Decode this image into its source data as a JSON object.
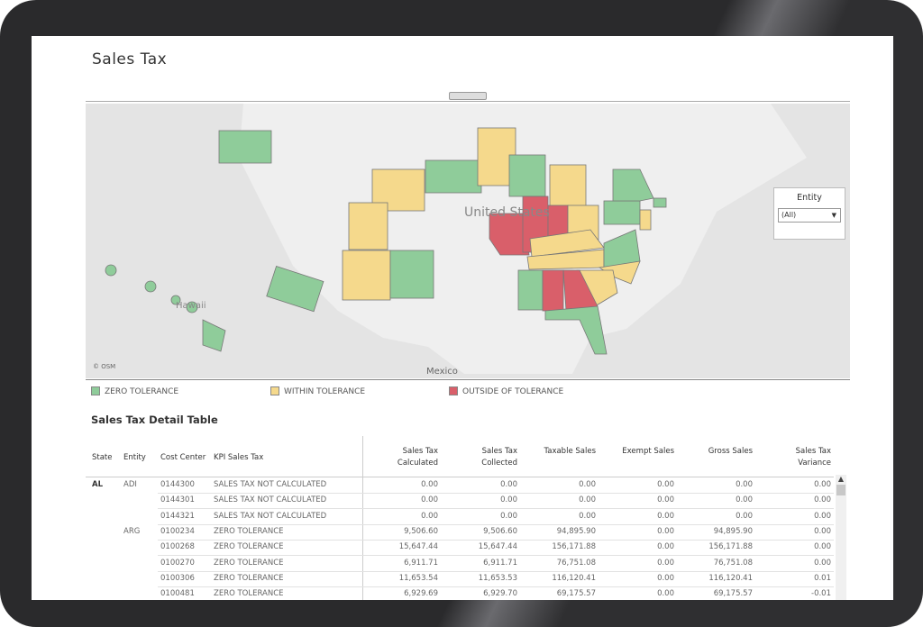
{
  "header": {
    "title": "Sales Tax"
  },
  "map": {
    "country_label": "United States",
    "region_label": "Hawaii",
    "neighbor_label": "Mexico",
    "attribution": "© OSM"
  },
  "filter": {
    "label": "Entity",
    "value": "(All)"
  },
  "legend": [
    "ZERO TOLERANCE",
    "WITHIN TOLERANCE",
    "OUTSIDE OF TOLERANCE"
  ],
  "table": {
    "title": "Sales Tax Detail Table",
    "columns": [
      "State",
      "Entity",
      "Cost Center",
      "KPI Sales Tax",
      "Sales Tax\nCalculated",
      "Sales Tax\nCollected",
      "Taxable Sales",
      "Exempt Sales",
      "Gross Sales",
      "Sales Tax\nVariance"
    ],
    "rows": [
      [
        "AL",
        "ADI",
        "0144300",
        "SALES TAX NOT CALCULATED",
        "0.00",
        "0.00",
        "0.00",
        "0.00",
        "0.00",
        "0.00"
      ],
      [
        null,
        null,
        "0144301",
        "SALES TAX NOT CALCULATED",
        "0.00",
        "0.00",
        "0.00",
        "0.00",
        "0.00",
        "0.00"
      ],
      [
        null,
        null,
        "0144321",
        "SALES TAX NOT CALCULATED",
        "0.00",
        "0.00",
        "0.00",
        "0.00",
        "0.00",
        "0.00"
      ],
      [
        null,
        "ARG",
        "0100234",
        "ZERO TOLERANCE",
        "9,506.60",
        "9,506.60",
        "94,895.90",
        "0.00",
        "94,895.90",
        "0.00"
      ],
      [
        null,
        null,
        "0100268",
        "ZERO TOLERANCE",
        "15,647.44",
        "15,647.44",
        "156,171.88",
        "0.00",
        "156,171.88",
        "0.00"
      ],
      [
        null,
        null,
        "0100270",
        "ZERO TOLERANCE",
        "6,911.71",
        "6,911.71",
        "76,751.08",
        "0.00",
        "76,751.08",
        "0.00"
      ],
      [
        null,
        null,
        "0100306",
        "ZERO TOLERANCE",
        "11,653.54",
        "11,653.53",
        "116,120.41",
        "0.00",
        "116,120.41",
        "0.01"
      ],
      [
        null,
        null,
        "0100481",
        "ZERO TOLERANCE",
        "6,929.69",
        "6,929.70",
        "69,175.57",
        "0.00",
        "69,175.57",
        "-0.01"
      ]
    ]
  }
}
